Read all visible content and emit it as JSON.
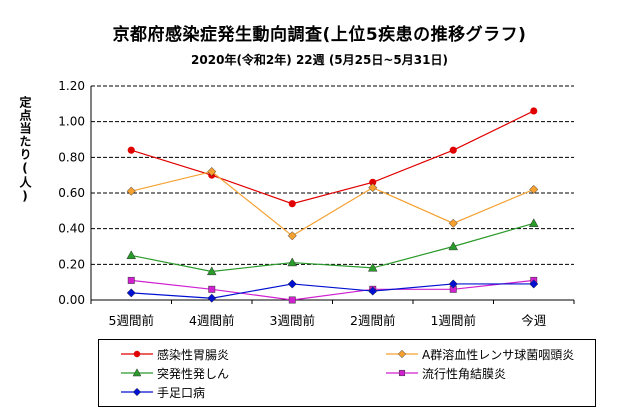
{
  "chart_data": {
    "type": "line",
    "title": "京都府感染症発生動向調査(上位5疾患の推移グラフ)",
    "subtitle": "2020年(令和2年) 22週 (5月25日~5月31日)",
    "ylabel": "定点当たり(人)",
    "xlabel": "",
    "categories": [
      "5週間前",
      "4週間前",
      "3週間前",
      "2週間前",
      "1週間前",
      "今週"
    ],
    "ylim": [
      0,
      1.2
    ],
    "yticks": [
      "0.00",
      "0.20",
      "0.40",
      "0.60",
      "0.80",
      "1.00",
      "1.20"
    ],
    "grid": "horizontal dashed",
    "legend_position": "bottom",
    "series": [
      {
        "name": "感染性胃腸炎",
        "color": "#e00000",
        "marker": "circle",
        "values": [
          0.84,
          0.7,
          0.54,
          0.66,
          0.84,
          1.06
        ]
      },
      {
        "name": "A群溶血性レンサ球菌咽頭炎",
        "color": "#f5a030",
        "marker": "diamond",
        "values": [
          0.61,
          0.72,
          0.36,
          0.63,
          0.43,
          0.62
        ]
      },
      {
        "name": "突発性発しん",
        "color": "#2a9a2a",
        "marker": "triangle",
        "values": [
          0.25,
          0.16,
          0.21,
          0.18,
          0.3,
          0.43
        ]
      },
      {
        "name": "流行性角結膜炎",
        "color": "#d020d0",
        "marker": "square",
        "values": [
          0.11,
          0.06,
          0.0,
          0.06,
          0.06,
          0.11
        ]
      },
      {
        "name": "手足口病",
        "color": "#0010d0",
        "marker": "diamond",
        "values": [
          0.04,
          0.01,
          0.09,
          0.05,
          0.09,
          0.09
        ]
      }
    ]
  }
}
